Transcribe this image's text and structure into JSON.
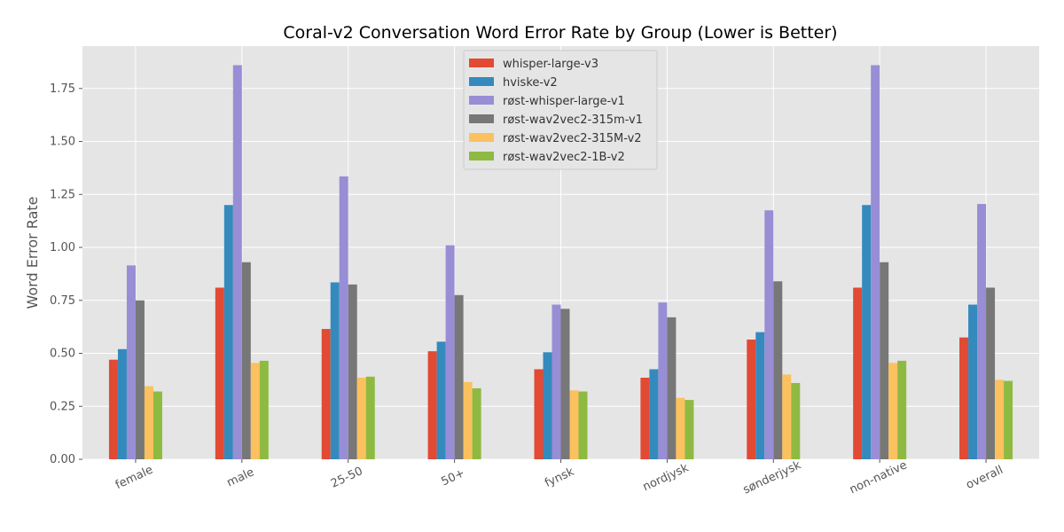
{
  "chart_data": {
    "type": "bar",
    "title": "Coral-v2 Conversation Word Error Rate by Group (Lower is Better)",
    "xlabel": "",
    "ylabel": "Word Error Rate",
    "ylim": [
      0,
      1.95
    ],
    "yticks": [
      "0.00",
      "0.25",
      "0.50",
      "0.75",
      "1.00",
      "1.25",
      "1.50",
      "1.75"
    ],
    "grid": true,
    "legend_position": "top-center",
    "categories": [
      "female",
      "male",
      "25-50",
      "50+",
      "fynsk",
      "nordjysk",
      "sønderjysk",
      "non-native",
      "overall"
    ],
    "series": [
      {
        "name": "whisper-large-v3",
        "color": "#E24A33",
        "values": [
          0.47,
          0.81,
          0.615,
          0.51,
          0.425,
          0.385,
          0.565,
          0.81,
          0.575
        ]
      },
      {
        "name": "hviske-v2",
        "color": "#348ABD",
        "values": [
          0.52,
          1.2,
          0.835,
          0.555,
          0.505,
          0.425,
          0.6,
          1.2,
          0.73
        ]
      },
      {
        "name": "røst-whisper-large-v1",
        "color": "#988ED5",
        "values": [
          0.915,
          1.86,
          1.335,
          1.01,
          0.73,
          0.74,
          1.175,
          1.86,
          1.205
        ]
      },
      {
        "name": "røst-wav2vec2-315m-v1",
        "color": "#777777",
        "values": [
          0.75,
          0.93,
          0.825,
          0.775,
          0.71,
          0.67,
          0.84,
          0.93,
          0.81
        ]
      },
      {
        "name": "røst-wav2vec2-315M-v2",
        "color": "#FBC15E",
        "values": [
          0.345,
          0.455,
          0.385,
          0.365,
          0.325,
          0.29,
          0.4,
          0.455,
          0.375
        ]
      },
      {
        "name": "røst-wav2vec2-1B-v2",
        "color": "#8EBA42",
        "values": [
          0.32,
          0.465,
          0.39,
          0.335,
          0.32,
          0.28,
          0.36,
          0.465,
          0.37
        ]
      }
    ]
  }
}
